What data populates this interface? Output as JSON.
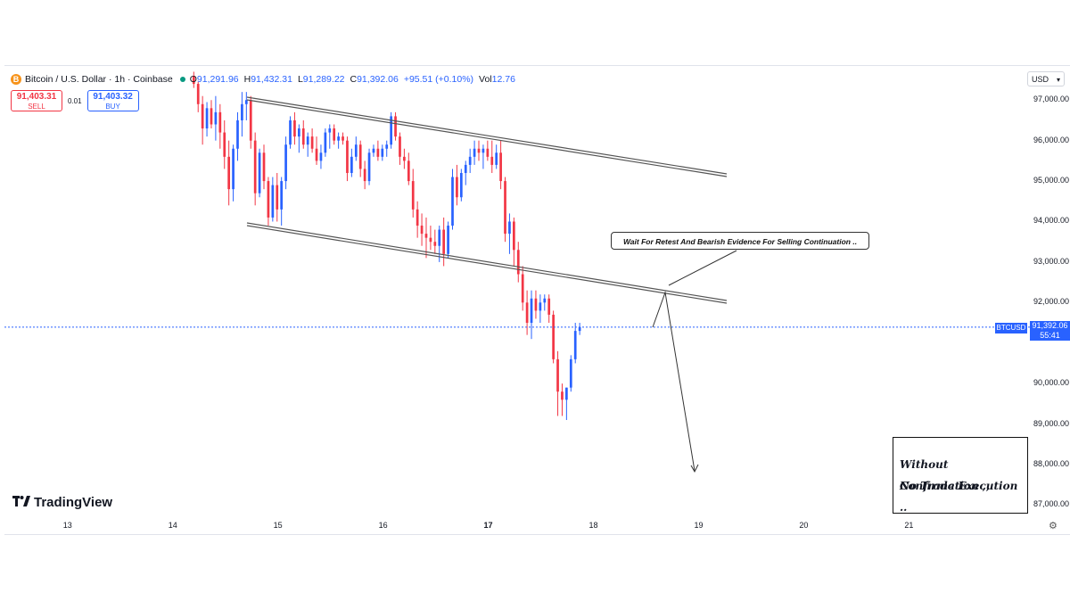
{
  "header": {
    "symbol": "Bitcoin / U.S. Dollar · 1h · Coinbase",
    "coin_badge": "B",
    "open_label": "O",
    "open": "91,291.96",
    "high_label": "H",
    "high": "91,432.31",
    "low_label": "L",
    "low": "91,289.22",
    "close_label": "C",
    "close": "91,392.06",
    "change": "+95.51 (+0.10%)",
    "vol_label": "Vol",
    "vol": "12.76"
  },
  "trade": {
    "sell_price": "91,403.31",
    "sell_label": "SELL",
    "spread": "0.01",
    "buy_price": "91,403.32",
    "buy_label": "BUY"
  },
  "currency": "USD",
  "last_price": {
    "symbol_tag": "BTCUSD",
    "price": "91,392.06",
    "countdown": "55:41"
  },
  "annotations": {
    "callout": "Wait For Retest And Bearish Evidence For Selling Continuation ..",
    "note_line1": "Without Confirmation ,,",
    "note_line2": "No Trade Execution .."
  },
  "branding": {
    "logo": "TradingView"
  },
  "colors": {
    "up": "#2962ff",
    "down": "#f23645",
    "accent": "#2962ff",
    "channel": "#555555"
  },
  "icons": [
    "bitcoin-icon",
    "status-dot-icon",
    "chevron-down-icon",
    "gear-icon",
    "tradingview-logo-icon"
  ],
  "chart_data": {
    "type": "candlestick",
    "title": "Bitcoin / U.S. Dollar · 1h · Coinbase",
    "y_tick_labels": [
      "97,000.00",
      "96,000.00",
      "95,000.00",
      "94,000.00",
      "93,000.00",
      "92,000.00",
      "90,000.00",
      "89,000.00",
      "88,000.00",
      "87,000.00"
    ],
    "y_ticks": [
      97000,
      96000,
      95000,
      94000,
      93000,
      92000,
      90000,
      89000,
      88000,
      87000
    ],
    "x_tick_labels": [
      "13",
      "14",
      "15",
      "16",
      "17",
      "18",
      "19",
      "20",
      "21"
    ],
    "x_ticks": [
      13,
      14,
      15,
      16,
      17,
      18,
      19,
      20,
      21
    ],
    "ylim": [
      86700,
      97600
    ],
    "xlim": [
      12.4,
      22.15
    ],
    "last_price": 91392.06,
    "candles_start_day": 14.2,
    "candles_step_days": 0.0417,
    "candles": [
      [
        97600,
        97700,
        97300,
        97400
      ],
      [
        97400,
        97450,
        96700,
        96900
      ],
      [
        96900,
        97100,
        95900,
        96300
      ],
      [
        96300,
        96950,
        96100,
        96800
      ],
      [
        96800,
        97000,
        96300,
        96400
      ],
      [
        96400,
        97100,
        96000,
        96700
      ],
      [
        96700,
        96900,
        95800,
        96200
      ],
      [
        96200,
        96500,
        95300,
        95600
      ],
      [
        95600,
        96000,
        94400,
        94800
      ],
      [
        94800,
        95900,
        94500,
        95800
      ],
      [
        95800,
        96700,
        95500,
        96500
      ],
      [
        96500,
        97200,
        96100,
        96900
      ],
      [
        96900,
        97200,
        96500,
        97000
      ],
      [
        97000,
        97100,
        95800,
        96000
      ],
      [
        96000,
        96200,
        94400,
        94700
      ],
      [
        94700,
        95800,
        94600,
        95700
      ],
      [
        95700,
        95900,
        94800,
        95000
      ],
      [
        95000,
        95100,
        93900,
        94100
      ],
      [
        94100,
        95100,
        94000,
        94900
      ],
      [
        94900,
        95200,
        94000,
        94300
      ],
      [
        94300,
        95100,
        93900,
        95000
      ],
      [
        95000,
        96100,
        94800,
        95900
      ],
      [
        95900,
        96600,
        95800,
        96500
      ],
      [
        96500,
        96700,
        95900,
        96100
      ],
      [
        96100,
        96400,
        95700,
        96300
      ],
      [
        96300,
        96500,
        95800,
        95900
      ],
      [
        95900,
        96200,
        95600,
        96100
      ],
      [
        96100,
        96300,
        95700,
        95800
      ],
      [
        95800,
        96100,
        95400,
        95500
      ],
      [
        95500,
        95900,
        95300,
        95700
      ],
      [
        95700,
        96300,
        95600,
        96200
      ],
      [
        96200,
        96400,
        95800,
        96300
      ],
      [
        96300,
        96400,
        95900,
        96000
      ],
      [
        96000,
        96200,
        95800,
        96100
      ],
      [
        96100,
        96200,
        95900,
        96000
      ],
      [
        96000,
        96100,
        95000,
        95200
      ],
      [
        95200,
        95800,
        95100,
        95600
      ],
      [
        95600,
        96100,
        95500,
        95900
      ],
      [
        95900,
        96000,
        95100,
        95300
      ],
      [
        95300,
        95500,
        94800,
        95000
      ],
      [
        95000,
        95800,
        94900,
        95700
      ],
      [
        95700,
        95900,
        95600,
        95800
      ],
      [
        95800,
        96000,
        95500,
        95600
      ],
      [
        95600,
        95900,
        95500,
        95800
      ],
      [
        95800,
        96000,
        95600,
        95900
      ],
      [
        95900,
        96700,
        95800,
        96600
      ],
      [
        96600,
        96700,
        96000,
        96100
      ],
      [
        96100,
        96200,
        95400,
        95600
      ],
      [
        95600,
        95800,
        95300,
        95500
      ],
      [
        95500,
        95700,
        94900,
        95000
      ],
      [
        95000,
        95300,
        94100,
        94300
      ],
      [
        94300,
        94500,
        93600,
        93900
      ],
      [
        93900,
        94200,
        93400,
        93700
      ],
      [
        93700,
        94100,
        93100,
        93600
      ],
      [
        93600,
        93900,
        93300,
        93500
      ],
      [
        93500,
        93800,
        93200,
        93400
      ],
      [
        93400,
        93900,
        93000,
        93800
      ],
      [
        93800,
        94100,
        92900,
        93200
      ],
      [
        93200,
        94000,
        93100,
        93900
      ],
      [
        93900,
        95300,
        93800,
        95100
      ],
      [
        95100,
        95400,
        94400,
        94600
      ],
      [
        94600,
        95300,
        94500,
        95200
      ],
      [
        95200,
        95500,
        94900,
        95400
      ],
      [
        95400,
        95800,
        95200,
        95600
      ],
      [
        95600,
        96000,
        95400,
        95800
      ],
      [
        95800,
        96000,
        95500,
        95700
      ],
      [
        95700,
        95900,
        95300,
        95800
      ],
      [
        95800,
        96000,
        95500,
        95600
      ],
      [
        95600,
        96000,
        95200,
        95400
      ],
      [
        95400,
        95900,
        95300,
        95700
      ],
      [
        95700,
        96000,
        94800,
        95000
      ],
      [
        95000,
        95100,
        93500,
        93700
      ],
      [
        93700,
        94200,
        93200,
        94000
      ],
      [
        94000,
        94100,
        92900,
        93300
      ],
      [
        93300,
        93500,
        92500,
        92700
      ],
      [
        92700,
        92900,
        91800,
        92000
      ],
      [
        92000,
        92300,
        91200,
        91500
      ],
      [
        91500,
        92300,
        91100,
        92100
      ],
      [
        92100,
        92300,
        91600,
        91800
      ],
      [
        91800,
        92200,
        91500,
        92000
      ],
      [
        92000,
        92200,
        91800,
        92100
      ],
      [
        92100,
        92200,
        91500,
        91700
      ],
      [
        91700,
        91800,
        90500,
        90600
      ],
      [
        90600,
        90800,
        89200,
        89800
      ],
      [
        89800,
        90000,
        89200,
        89600
      ],
      [
        89600,
        89900,
        89100,
        89900
      ],
      [
        89900,
        90700,
        89800,
        90600
      ],
      [
        90600,
        91500,
        90500,
        91300
      ],
      [
        91300,
        91500,
        91200,
        91392
      ]
    ]
  }
}
